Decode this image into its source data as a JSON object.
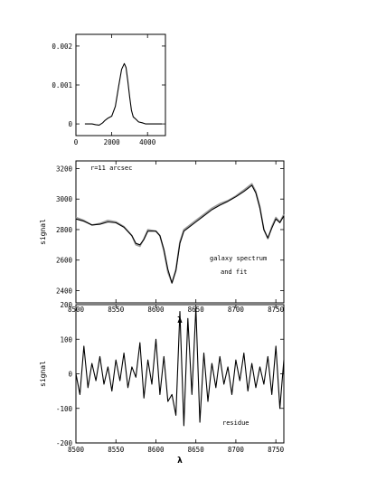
{
  "chart_data": [
    {
      "type": "line",
      "xlim": [
        0,
        5000
      ],
      "ylim": [
        -0.0003,
        0.0023
      ],
      "x_ticks": [
        "0",
        "2000",
        "4000"
      ],
      "y_ticks": [
        "0",
        "0.001",
        "0.002"
      ],
      "xlabel": "",
      "ylabel": "",
      "series": [
        {
          "x": [
            500,
            900,
            1100,
            1300,
            1500,
            1600,
            1800,
            2000,
            2200,
            2400,
            2550,
            2700,
            2800,
            2900,
            3000,
            3100,
            3200,
            3350,
            3500,
            3700,
            3900,
            4200,
            4500,
            4800
          ],
          "y": [
            0,
            0,
            -2e-05,
            -3e-05,
            3e-05,
            8e-05,
            0.00015,
            0.0002,
            0.00045,
            0.001,
            0.0014,
            0.00155,
            0.00145,
            0.0011,
            0.0007,
            0.00035,
            0.00018,
            0.00012,
            5e-05,
            3e-05,
            0.0,
            0,
            0,
            0
          ]
        }
      ]
    },
    {
      "type": "line",
      "xlim": [
        8500,
        8760
      ],
      "ylim": [
        2320,
        3250
      ],
      "x_ticks": [
        "8500",
        "8550",
        "8600",
        "8650",
        "8700",
        "8750"
      ],
      "y_ticks": [
        "2400",
        "2600",
        "2800",
        "3000",
        "3200"
      ],
      "xlabel": "λ",
      "ylabel": "signal",
      "annotations": [
        "r=11 arcsec",
        "galaxy spectrum",
        "and fit"
      ],
      "series": [
        {
          "name": "galaxy spectrum",
          "color": "#9a9a9a",
          "x": [
            8500,
            8510,
            8520,
            8530,
            8540,
            8550,
            8560,
            8570,
            8575,
            8580,
            8585,
            8590,
            8600,
            8605,
            8610,
            8615,
            8620,
            8625,
            8630,
            8635,
            8640,
            8650,
            8660,
            8670,
            8680,
            8690,
            8700,
            8710,
            8715,
            8720,
            8725,
            8730,
            8735,
            8740,
            8745,
            8750,
            8755,
            8760
          ],
          "y": [
            2880,
            2860,
            2830,
            2840,
            2860,
            2850,
            2820,
            2760,
            2700,
            2690,
            2740,
            2800,
            2790,
            2760,
            2660,
            2520,
            2450,
            2540,
            2720,
            2800,
            2820,
            2860,
            2900,
            2940,
            2970,
            2990,
            3020,
            3060,
            3080,
            3100,
            3050,
            2950,
            2800,
            2740,
            2820,
            2880,
            2850,
            2900
          ]
        },
        {
          "name": "fit",
          "color": "#000000",
          "x": [
            8500,
            8510,
            8520,
            8530,
            8540,
            8550,
            8560,
            8570,
            8575,
            8580,
            8585,
            8590,
            8600,
            8605,
            8610,
            8615,
            8620,
            8625,
            8630,
            8635,
            8640,
            8650,
            8660,
            8670,
            8680,
            8690,
            8700,
            8710,
            8715,
            8720,
            8725,
            8730,
            8735,
            8740,
            8745,
            8750,
            8755,
            8760
          ],
          "y": [
            2870,
            2855,
            2830,
            2835,
            2850,
            2845,
            2815,
            2760,
            2710,
            2700,
            2735,
            2790,
            2790,
            2760,
            2670,
            2540,
            2450,
            2530,
            2710,
            2790,
            2810,
            2850,
            2890,
            2930,
            2960,
            2985,
            3015,
            3050,
            3070,
            3090,
            3040,
            2940,
            2800,
            2745,
            2810,
            2870,
            2845,
            2890
          ]
        }
      ]
    },
    {
      "type": "line",
      "xlim": [
        8500,
        8760
      ],
      "ylim": [
        -200,
        200
      ],
      "x_ticks": [
        "8500",
        "8550",
        "8600",
        "8650",
        "8700",
        "8750"
      ],
      "y_ticks": [
        "-200",
        "-100",
        "0",
        "100",
        "200"
      ],
      "xlabel": "λ",
      "ylabel": "signal",
      "annotations": [
        "residue"
      ],
      "series": [
        {
          "name": "residue",
          "color": "#000000",
          "x": [
            8500,
            8505,
            8510,
            8515,
            8520,
            8525,
            8530,
            8535,
            8540,
            8545,
            8550,
            8555,
            8560,
            8565,
            8570,
            8575,
            8580,
            8585,
            8590,
            8595,
            8600,
            8605,
            8610,
            8615,
            8620,
            8625,
            8630,
            8635,
            8640,
            8645,
            8650,
            8655,
            8660,
            8665,
            8670,
            8675,
            8680,
            8685,
            8690,
            8695,
            8700,
            8705,
            8710,
            8715,
            8720,
            8725,
            8730,
            8735,
            8740,
            8745,
            8750,
            8755,
            8760
          ],
          "y": [
            0,
            -60,
            80,
            -40,
            30,
            -20,
            50,
            -30,
            20,
            -50,
            40,
            -20,
            60,
            -40,
            20,
            -10,
            90,
            -70,
            40,
            -30,
            100,
            -60,
            50,
            -80,
            -60,
            -120,
            180,
            -150,
            160,
            -60,
            190,
            -140,
            60,
            -80,
            30,
            -40,
            50,
            -30,
            20,
            -60,
            40,
            -20,
            60,
            -50,
            30,
            -40,
            20,
            -30,
            50,
            -60,
            80,
            -100,
            40
          ]
        }
      ]
    }
  ]
}
